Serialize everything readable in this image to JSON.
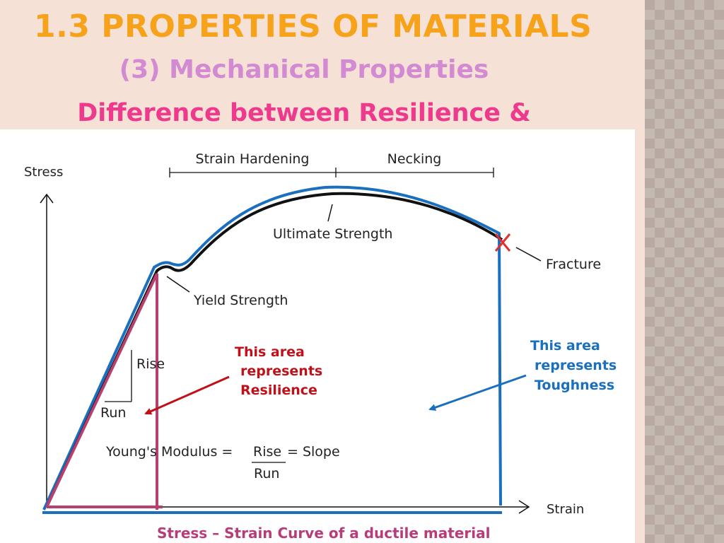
{
  "slide": {
    "title": "1.3 PROPERTIES OF MATERIALS",
    "subtitle": "(3) Mechanical Properties",
    "heading": "Difference between Resilience &",
    "caption": "Stress – Strain Curve of a ductile material"
  },
  "diagram": {
    "y_axis_label": "Stress",
    "x_axis_label": "Strain",
    "region_labels": {
      "strain_hardening": "Strain Hardening",
      "necking": "Necking"
    },
    "point_labels": {
      "ultimate_strength": "Ultimate Strength",
      "fracture": "Fracture",
      "yield_strength": "Yield Strength"
    },
    "triangle": {
      "rise": "Rise",
      "run": "Run"
    },
    "formula": {
      "lhs": "Young's Modulus =",
      "numerator": "Rise",
      "equals": "= Slope",
      "denominator": "Run"
    },
    "resilience_note": [
      "This area",
      "represents",
      "Resilience"
    ],
    "toughness_note": [
      "This area",
      "represents",
      "Toughness"
    ]
  },
  "colors": {
    "title": "#f7a21b",
    "subtitle": "#d28ad2",
    "heading": "#ee3a8c",
    "resilience": "#b8406f",
    "resilience_text": "#c0101a",
    "toughness": "#1a6fbf",
    "curve": "#111111",
    "caption": "#b63d7a"
  }
}
